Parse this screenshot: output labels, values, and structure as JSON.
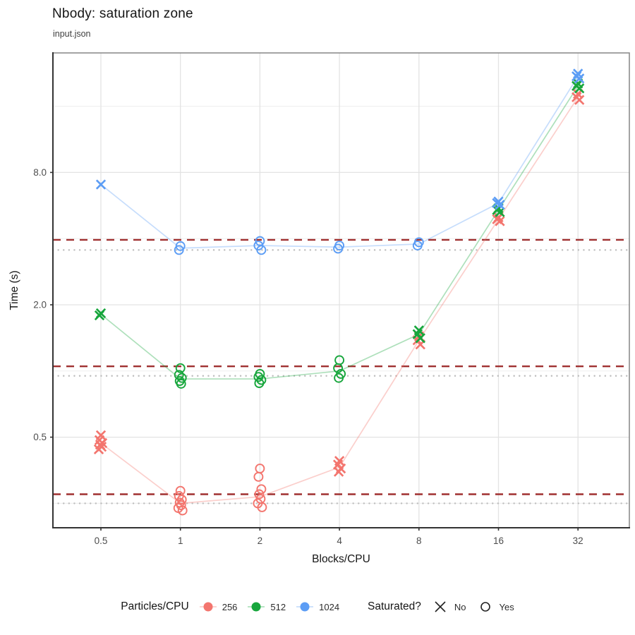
{
  "title": "Nbody: saturation zone",
  "subtitle": "input.json",
  "legend": {
    "color_title": "Particles/CPU",
    "color_items": [
      {
        "label": "256",
        "color": "#F3756E"
      },
      {
        "label": "512",
        "color": "#17A63C"
      },
      {
        "label": "1024",
        "color": "#5C9DF5"
      }
    ],
    "shape_title": "Saturated?",
    "shape_items": [
      {
        "label": "No",
        "shape": "x"
      },
      {
        "label": "Yes",
        "shape": "o"
      }
    ]
  },
  "chart_data": {
    "type": "scatter",
    "title": "Nbody: saturation zone",
    "subtitle": "input.json",
    "xlabel": "Blocks/CPU",
    "ylabel": "Time (s)",
    "log_scale_x": 2,
    "log_scale_y": true,
    "x_ticks": [
      0.5,
      1,
      2,
      4,
      8,
      16,
      32
    ],
    "x_tick_labels": [
      "0.5",
      "1",
      "2",
      "4",
      "8",
      "16",
      "32"
    ],
    "y_ticks": [
      0.5,
      2.0,
      8.0
    ],
    "y_tick_labels": [
      "0.5",
      "2.0",
      "8.0"
    ],
    "y_minor_gridlines": [
      0.25,
      1.0,
      4.0,
      16.0
    ],
    "ylim": [
      0.21,
      28
    ],
    "grid": true,
    "legend_position": "bottom",
    "ref_lines": {
      "dashed": {
        "color": "#A03030",
        "values": [
          3.95,
          1.05,
          0.275
        ]
      },
      "dotted": {
        "color": "#BDBDBD",
        "values": [
          3.55,
          0.95,
          0.25
        ]
      }
    },
    "series": [
      {
        "name": "256",
        "color": "#F3756E",
        "line": [
          [
            0.5,
            0.47
          ],
          [
            1,
            0.25
          ],
          [
            2,
            0.268
          ],
          [
            4,
            0.365
          ],
          [
            8,
            1.38
          ],
          [
            16,
            4.9
          ],
          [
            32,
            17.6
          ]
        ],
        "clusters": [
          {
            "x": 0.5,
            "shape": "x",
            "values": [
              0.51,
              0.485,
              0.47,
              0.462,
              0.452,
              0.44
            ]
          },
          {
            "x": 1,
            "shape": "o",
            "values": [
              0.285,
              0.27,
              0.26,
              0.252,
              0.245,
              0.238,
              0.232
            ]
          },
          {
            "x": 2,
            "shape": "o",
            "values": [
              0.36,
              0.33,
              0.29,
              0.275,
              0.262,
              0.25,
              0.24
            ]
          },
          {
            "x": 4,
            "shape": "x",
            "values": [
              0.39,
              0.375,
              0.36,
              0.348
            ]
          },
          {
            "x": 8,
            "shape": "x",
            "values": [
              1.44,
              1.38,
              1.32
            ]
          },
          {
            "x": 16,
            "shape": "x",
            "values": [
              5.0,
              4.9,
              4.8
            ]
          },
          {
            "x": 32,
            "shape": "x",
            "values": [
              18.2,
              17.6,
              17.1
            ]
          }
        ]
      },
      {
        "name": "512",
        "color": "#17A63C",
        "line": [
          [
            0.5,
            1.81
          ],
          [
            1,
            0.92
          ],
          [
            2,
            0.92
          ],
          [
            4,
            1.0
          ],
          [
            8,
            1.47
          ],
          [
            16,
            5.4
          ],
          [
            32,
            19.8
          ]
        ],
        "clusters": [
          {
            "x": 0.5,
            "shape": "x",
            "values": [
              1.83,
              1.79
            ]
          },
          {
            "x": 1,
            "shape": "o",
            "values": [
              1.03,
              0.96,
              0.93,
              0.9,
              0.875
            ]
          },
          {
            "x": 2,
            "shape": "o",
            "values": [
              0.97,
              0.94,
              0.91,
              0.88
            ]
          },
          {
            "x": 4,
            "shape": "o",
            "values": [
              1.12,
              1.03,
              0.97,
              0.93
            ]
          },
          {
            "x": 8,
            "shape": "x",
            "values": [
              1.53,
              1.47,
              1.41
            ]
          },
          {
            "x": 16,
            "shape": "x",
            "values": [
              5.5,
              5.4,
              5.28
            ]
          },
          {
            "x": 32,
            "shape": "x",
            "values": [
              20.3,
              19.8,
              19.3
            ]
          }
        ]
      },
      {
        "name": "1024",
        "color": "#5C9DF5",
        "line": [
          [
            0.5,
            7.05
          ],
          [
            1,
            3.62
          ],
          [
            2,
            3.72
          ],
          [
            4,
            3.66
          ],
          [
            8,
            3.78
          ],
          [
            16,
            5.8
          ],
          [
            32,
            21.9
          ]
        ],
        "clusters": [
          {
            "x": 0.5,
            "shape": "x",
            "values": [
              7.05
            ]
          },
          {
            "x": 1,
            "shape": "o",
            "values": [
              3.7,
              3.55
            ]
          },
          {
            "x": 2,
            "shape": "o",
            "values": [
              3.9,
              3.72,
              3.55
            ]
          },
          {
            "x": 4,
            "shape": "o",
            "values": [
              3.72,
              3.6
            ]
          },
          {
            "x": 8,
            "shape": "o",
            "values": [
              3.85,
              3.72
            ]
          },
          {
            "x": 16,
            "shape": "x",
            "values": [
              5.9,
              5.8,
              5.7
            ]
          },
          {
            "x": 32,
            "shape": "x",
            "values": [
              22.5,
              21.9,
              21.4
            ]
          }
        ]
      }
    ]
  }
}
